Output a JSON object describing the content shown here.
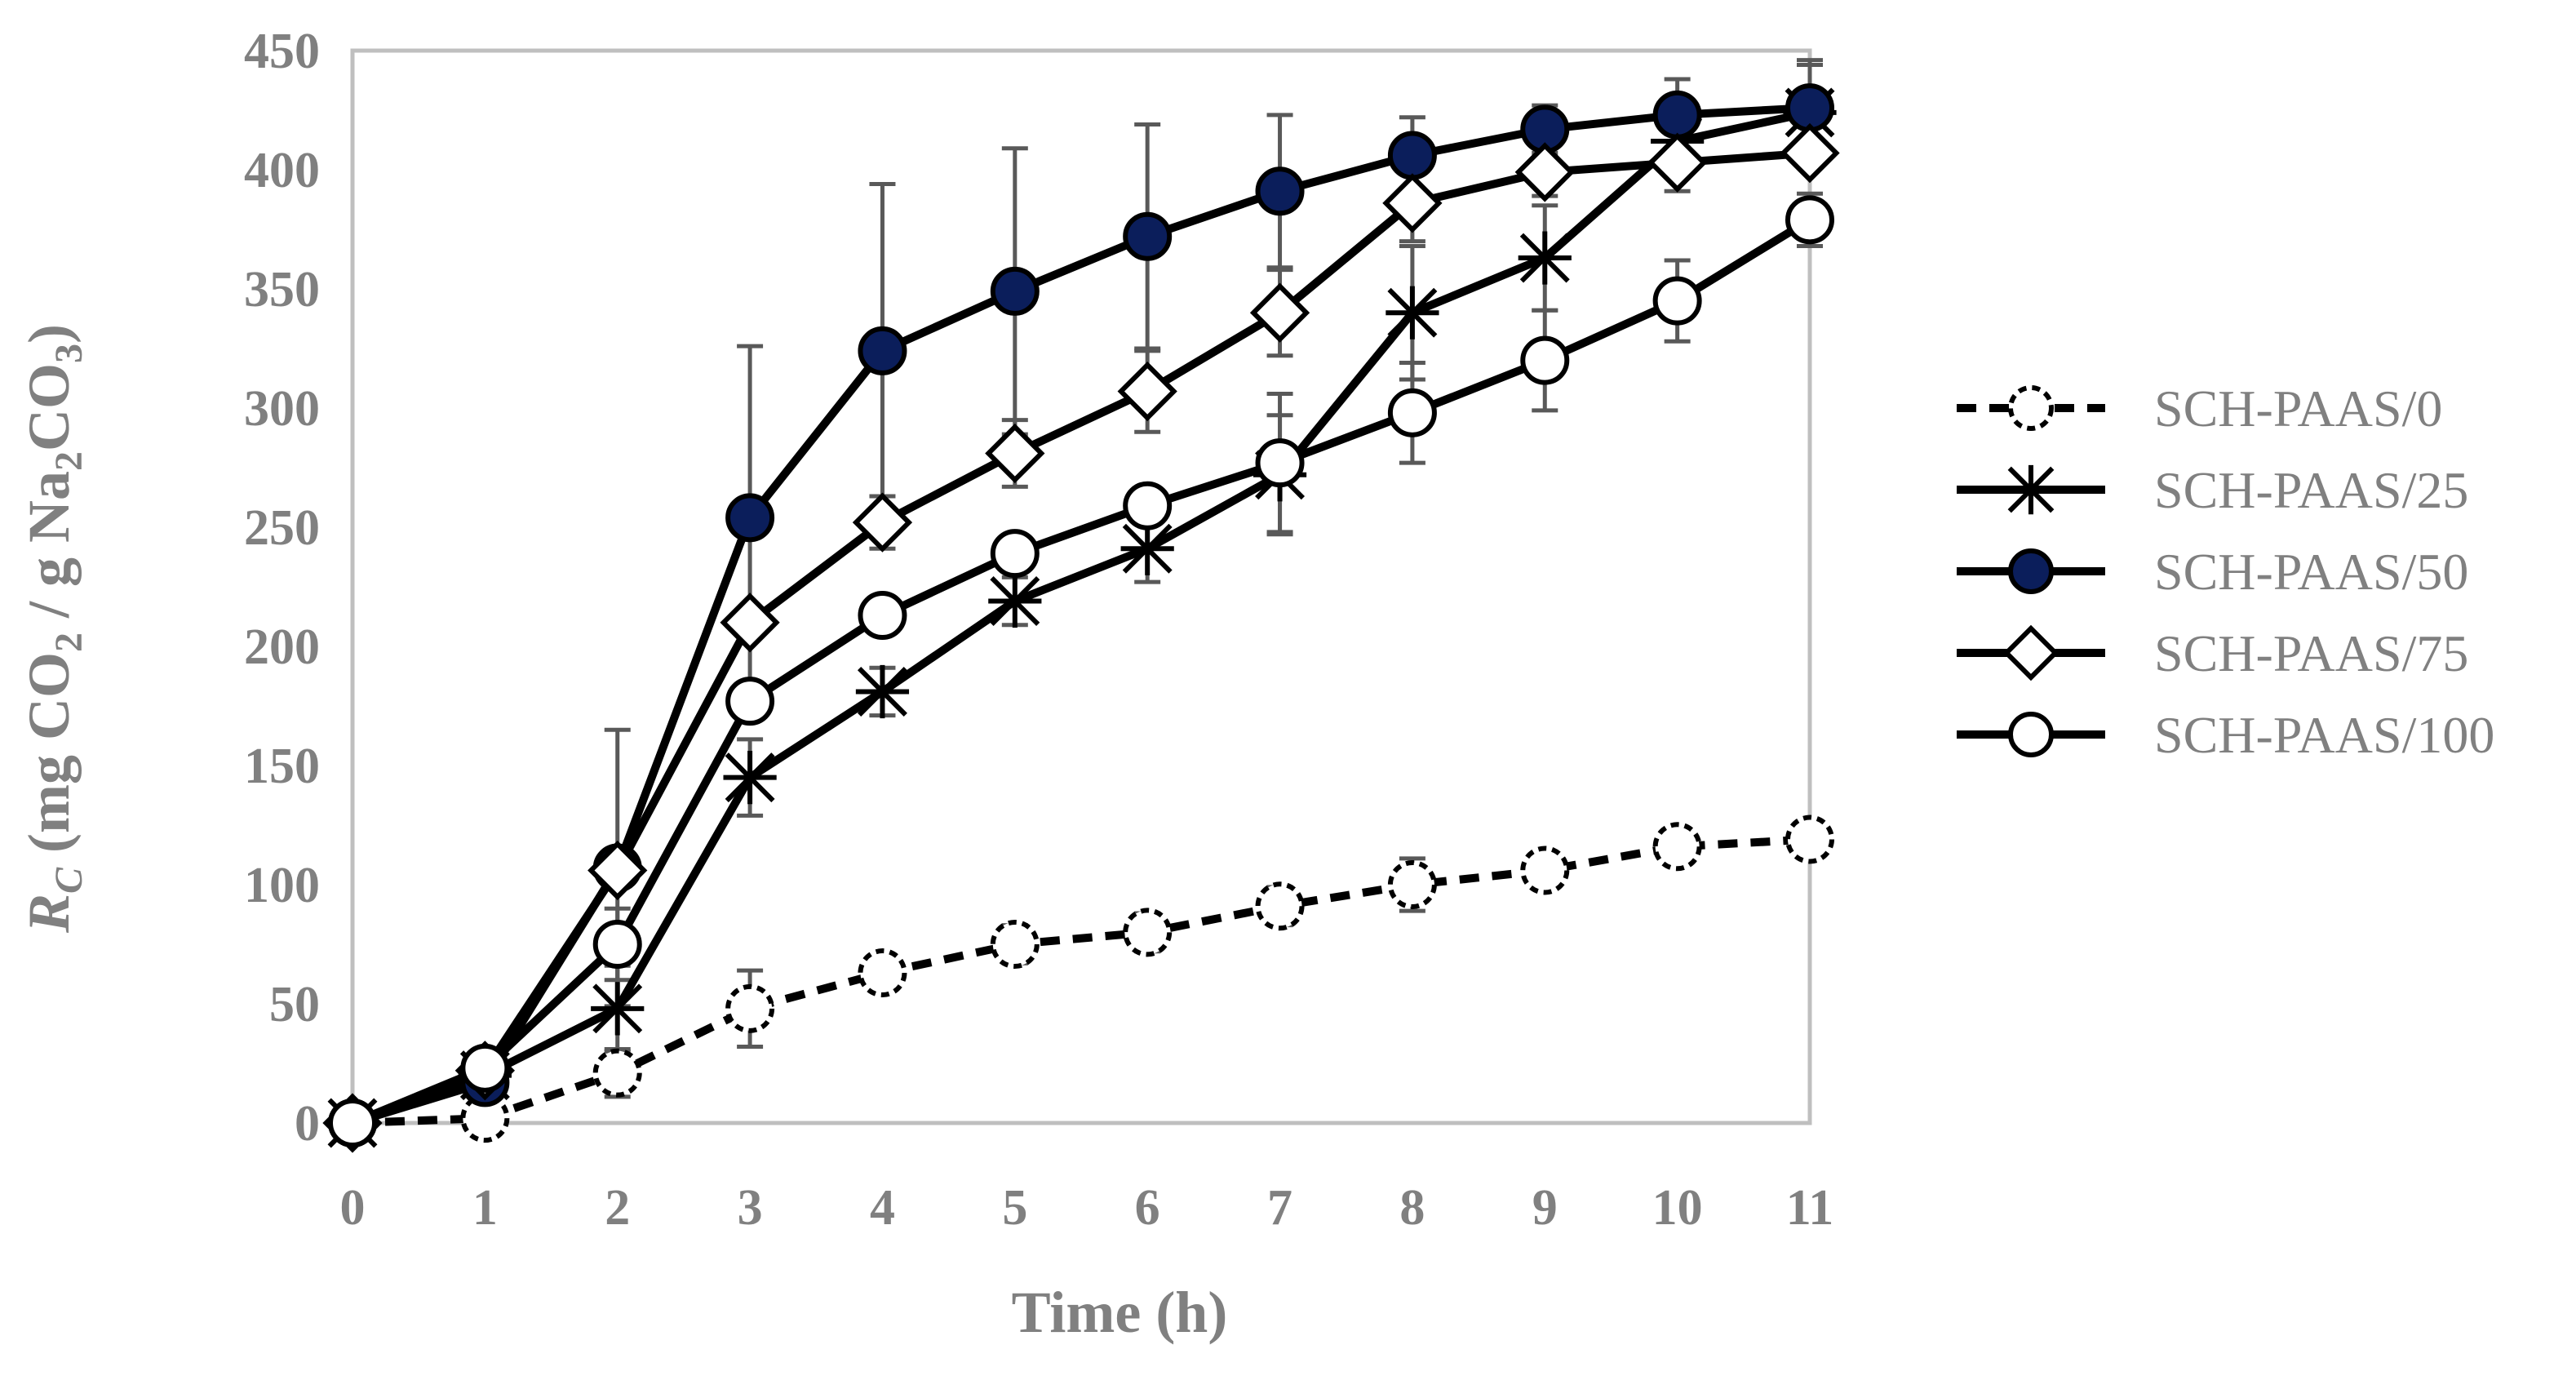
{
  "chart_data": {
    "type": "line",
    "title": "",
    "xlabel": "Time (h)",
    "ylabel": {
      "main": "R",
      "main_sub": "C",
      "open": " (mg CO",
      "sub1": "2",
      "mid": " / g Na",
      "sub2": "2",
      "mid2": "CO",
      "sub3": "3",
      "close": ")"
    },
    "xlim": [
      0,
      11
    ],
    "ylim": [
      0,
      450
    ],
    "x_ticks": [
      0,
      1,
      2,
      3,
      4,
      5,
      6,
      7,
      8,
      9,
      10,
      11
    ],
    "y_ticks": [
      0,
      50,
      100,
      150,
      200,
      250,
      300,
      350,
      400,
      450
    ],
    "grid": false,
    "legend_position": "right",
    "x": [
      0,
      1,
      2,
      3,
      4,
      5,
      6,
      7,
      8,
      9,
      10,
      11
    ],
    "series": [
      {
        "name": "SCH-PAAS/0",
        "marker": "circle-open",
        "line": "dashed",
        "marker_fill": "#ffffff",
        "values": [
          0,
          2,
          21,
          48,
          63,
          75,
          80,
          91,
          100,
          106,
          116,
          119
        ],
        "errors": [
          0,
          0,
          10,
          16,
          0,
          8,
          8,
          8,
          11,
          0,
          0,
          0
        ]
      },
      {
        "name": "SCH-PAAS/25",
        "marker": "asterisk",
        "line": "solid",
        "marker_fill": "#000000",
        "values": [
          0,
          20,
          48,
          145,
          181,
          219,
          241,
          272,
          340,
          363,
          412,
          424
        ],
        "errors": [
          0,
          0,
          18,
          16,
          10,
          10,
          14,
          25,
          28,
          22,
          0,
          20
        ]
      },
      {
        "name": "SCH-PAAS/50",
        "marker": "circle-filled",
        "line": "solid",
        "marker_fill": "#0b1e5b",
        "values": [
          0,
          17,
          107,
          254,
          324,
          349,
          372,
          391,
          406,
          417,
          423,
          426
        ],
        "errors": [
          0,
          0,
          58,
          72,
          70,
          60,
          47,
          32,
          16,
          10,
          15,
          20
        ]
      },
      {
        "name": "SCH-PAAS/75",
        "marker": "diamond-open",
        "line": "solid",
        "marker_fill": "#ffffff",
        "values": [
          0,
          22,
          106,
          210,
          252,
          281,
          307,
          340,
          386,
          399,
          403,
          407
        ],
        "errors": [
          0,
          0,
          0,
          0,
          11,
          14,
          17,
          18,
          16,
          10,
          12,
          0
        ]
      },
      {
        "name": "SCH-PAAS/100",
        "marker": "circle-open",
        "line": "solid",
        "marker_fill": "#ffffff",
        "values": [
          0,
          23,
          75,
          177,
          213,
          239,
          259,
          277,
          298,
          320,
          345,
          379
        ],
        "errors": [
          0,
          0,
          15,
          0,
          0,
          0,
          0,
          29,
          21,
          21,
          17,
          11
        ]
      }
    ],
    "colors": {
      "line": "#000000",
      "axis_text": "#808080",
      "frame": "#bfbfbf",
      "error_bar": "#595959",
      "navy": "#0b1e5b"
    }
  }
}
